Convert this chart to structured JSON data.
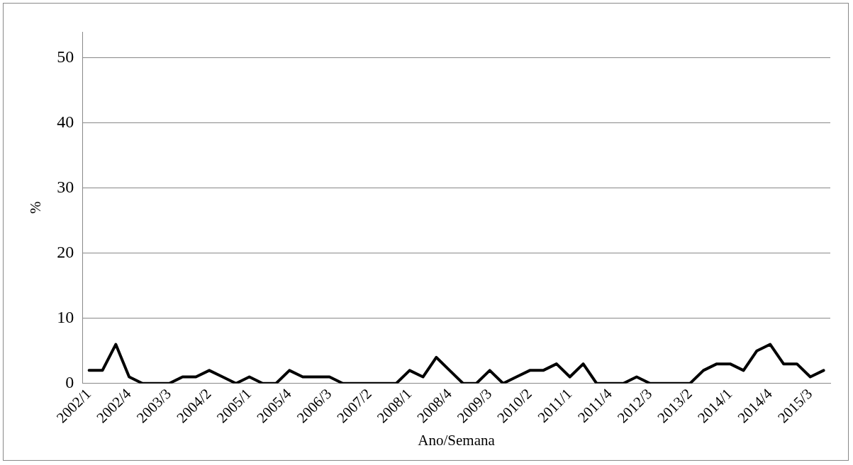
{
  "chart_data": {
    "type": "line",
    "xlabel": "Ano/Semana",
    "ylabel": "%",
    "categories": [
      "2002/1",
      null,
      null,
      "2002/4",
      null,
      null,
      "2003/3",
      null,
      null,
      "2004/2",
      null,
      null,
      "2005/1",
      null,
      null,
      "2005/4",
      null,
      null,
      "2006/3",
      null,
      null,
      "2007/2",
      null,
      null,
      "2008/1",
      null,
      null,
      "2008/4",
      null,
      null,
      "2009/3",
      null,
      null,
      "2010/2",
      null,
      null,
      "2011/1",
      null,
      null,
      "2011/4",
      null,
      null,
      "2012/3",
      null,
      null,
      "2013/2",
      null,
      null,
      "2014/1",
      null,
      null,
      "2014/4",
      null,
      null,
      "2015/3",
      null
    ],
    "series": [
      {
        "color": "#000000",
        "values": [
          2,
          2,
          6,
          1,
          0,
          0,
          0,
          1,
          1,
          2,
          1,
          0,
          1,
          0,
          0,
          2,
          1,
          1,
          1,
          0,
          0,
          0,
          0,
          0,
          2,
          1,
          4,
          2,
          0,
          0,
          2,
          0,
          1,
          2,
          2,
          3,
          1,
          3,
          0,
          0,
          0,
          1,
          0,
          0,
          0,
          0,
          2,
          3,
          3,
          2,
          5,
          6,
          3,
          3,
          1,
          2
        ]
      }
    ],
    "ylim": [
      0,
      54
    ],
    "yticks": [
      0,
      10,
      20,
      30,
      40,
      50
    ],
    "grid": "y",
    "legend": false,
    "marker": "none",
    "line_style": "solid"
  }
}
